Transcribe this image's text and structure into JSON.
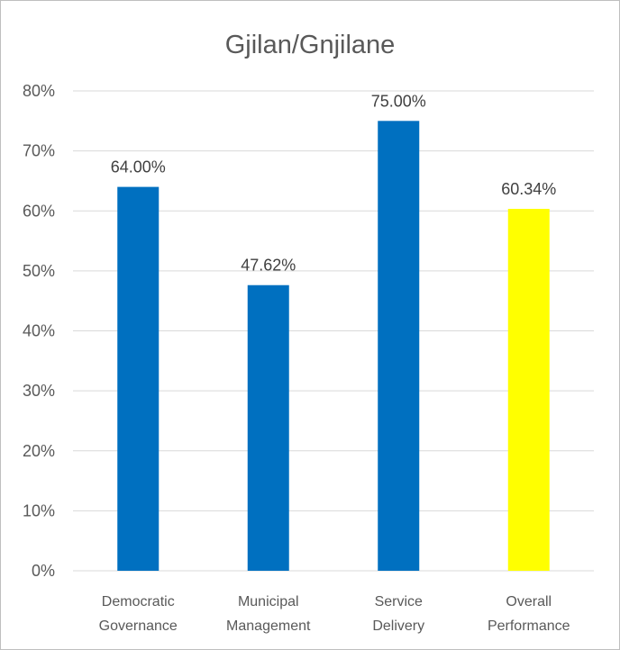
{
  "chart_data": {
    "type": "bar",
    "title": "Gjilan/Gnjilane",
    "categories": [
      [
        "Democratic",
        "Governance"
      ],
      [
        "Municipal",
        "Management"
      ],
      [
        "Service",
        "Delivery"
      ],
      [
        "Overall",
        "Performance"
      ]
    ],
    "values": [
      64.0,
      47.62,
      75.0,
      60.34
    ],
    "data_labels": [
      "64.00%",
      "47.62%",
      "75.00%",
      "60.34%"
    ],
    "bar_colors": [
      "#0070c0",
      "#0070c0",
      "#0070c0",
      "#ffff00"
    ],
    "ylim": [
      0,
      80
    ],
    "yticks": [
      0,
      10,
      20,
      30,
      40,
      50,
      60,
      70,
      80
    ],
    "ytick_labels": [
      "0%",
      "10%",
      "20%",
      "30%",
      "40%",
      "50%",
      "60%",
      "70%",
      "80%"
    ],
    "grid": true,
    "legend": false,
    "xlabel": "",
    "ylabel": ""
  }
}
